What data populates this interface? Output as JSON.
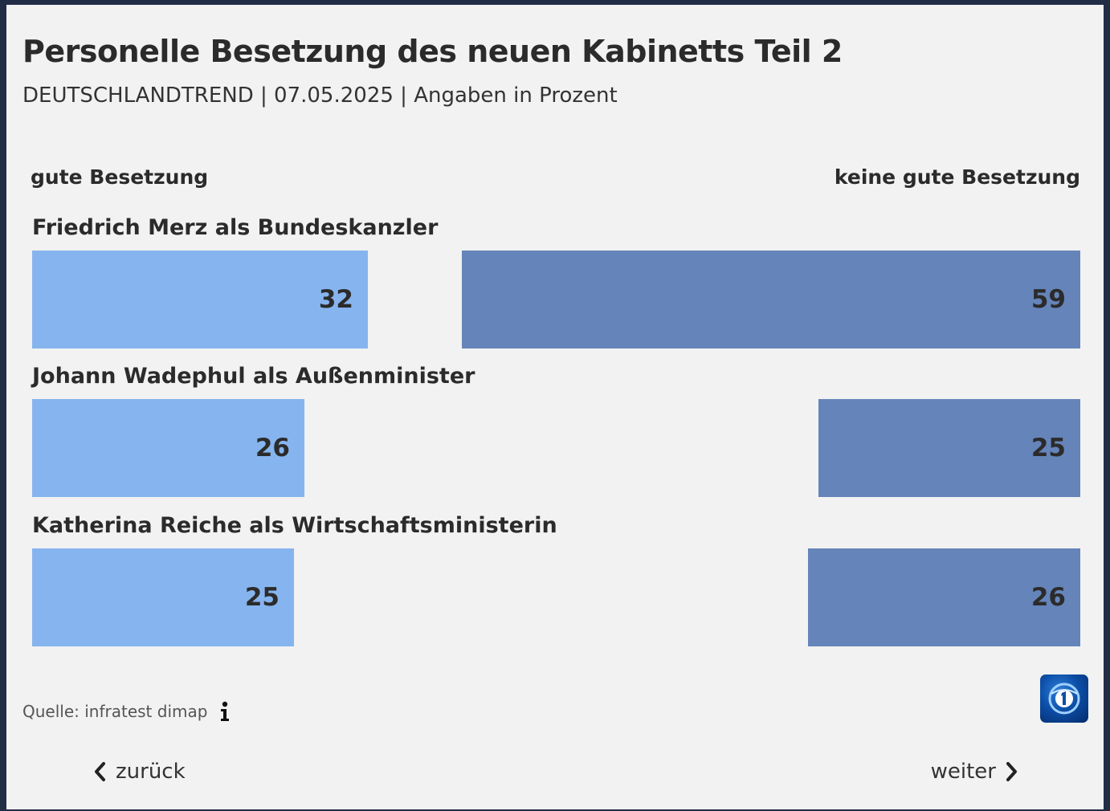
{
  "header": {
    "title": "Personelle Besetzung des neuen Kabinetts Teil 2",
    "subtitle": "DEUTSCHLANDTREND | 07.05.2025 | Angaben in Prozent"
  },
  "chart_data": {
    "type": "bar",
    "title": "Personelle Besetzung des neuen Kabinetts Teil 2",
    "subtitle": "DEUTSCHLANDTREND | 07.05.2025 | Angaben in Prozent",
    "categories": [
      "Friedrich Merz als Bundeskanzler",
      "Johann Wadephul als Außenminister",
      "Katherina Reiche als Wirtschaftsministerin"
    ],
    "series": [
      {
        "name": "gute Besetzung",
        "values": [
          32,
          26,
          25
        ],
        "color": "#86b4ee"
      },
      {
        "name": "keine gute Besetzung",
        "values": [
          59,
          25,
          26
        ],
        "color": "#6584b9"
      }
    ],
    "unit": "%"
  },
  "footer": {
    "source": "Quelle: infratest dimap",
    "back_label": "zurück",
    "next_label": "weiter"
  },
  "icons": {
    "info": "info-icon",
    "logo": "tagesschau-logo-icon",
    "back": "chevron-left-icon",
    "next": "chevron-right-icon"
  }
}
